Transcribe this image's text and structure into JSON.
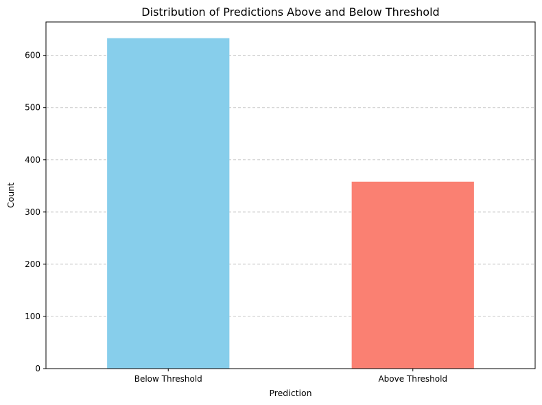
{
  "chart_data": {
    "type": "bar",
    "title": "Distribution of Predictions Above and Below Threshold",
    "xlabel": "Prediction",
    "ylabel": "Count",
    "categories": [
      "Below Threshold",
      "Above Threshold"
    ],
    "values": [
      633,
      358
    ],
    "colors": [
      "#87CEEB",
      "#FA8072"
    ],
    "ylim": [
      0,
      664
    ],
    "yticks": [
      0,
      100,
      200,
      300,
      400,
      500,
      600
    ],
    "grid": "y-dashed"
  }
}
